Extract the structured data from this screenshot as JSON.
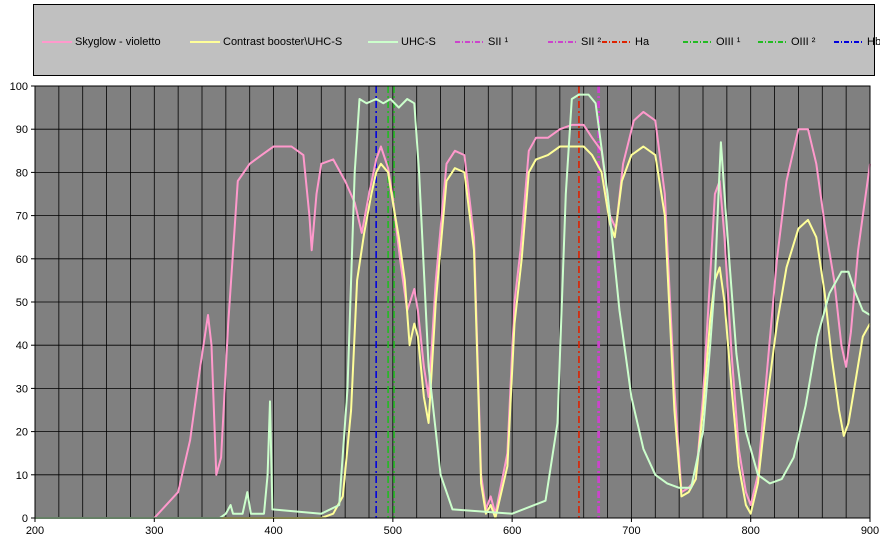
{
  "chart_data": {
    "type": "line",
    "title": "",
    "xlabel": "",
    "ylabel": "",
    "xlim": [
      200,
      900
    ],
    "ylim": [
      0,
      100
    ],
    "grid": true,
    "plot_background": "#808080",
    "legend_background": "#c0c0c0",
    "x_ticks": [
      "200",
      "300",
      "400",
      "500",
      "600",
      "700",
      "800",
      "900"
    ],
    "y_ticks": [
      "0",
      "10",
      "20",
      "30",
      "40",
      "50",
      "60",
      "70",
      "80",
      "90",
      "100"
    ],
    "legend_position": "top",
    "series": [
      {
        "name": "Skyglow - violetto",
        "color": "#ff99cc",
        "style": "solid",
        "points": [
          [
            200,
            0
          ],
          [
            300,
            0
          ],
          [
            320,
            6
          ],
          [
            330,
            18
          ],
          [
            338,
            34
          ],
          [
            345,
            47
          ],
          [
            348,
            40
          ],
          [
            352,
            10
          ],
          [
            356,
            14
          ],
          [
            362,
            45
          ],
          [
            370,
            78
          ],
          [
            380,
            82
          ],
          [
            390,
            84
          ],
          [
            400,
            86
          ],
          [
            415,
            86
          ],
          [
            425,
            84
          ],
          [
            430,
            70
          ],
          [
            432,
            62
          ],
          [
            436,
            75
          ],
          [
            440,
            82
          ],
          [
            450,
            83
          ],
          [
            460,
            78
          ],
          [
            468,
            73
          ],
          [
            474,
            66
          ],
          [
            480,
            75
          ],
          [
            486,
            83
          ],
          [
            490,
            86
          ],
          [
            496,
            81
          ],
          [
            500,
            74
          ],
          [
            506,
            60
          ],
          [
            512,
            48
          ],
          [
            518,
            53
          ],
          [
            521,
            48
          ],
          [
            526,
            35
          ],
          [
            530,
            28
          ],
          [
            536,
            55
          ],
          [
            545,
            82
          ],
          [
            552,
            85
          ],
          [
            560,
            84
          ],
          [
            568,
            65
          ],
          [
            574,
            10
          ],
          [
            578,
            2
          ],
          [
            582,
            5
          ],
          [
            586,
            1
          ],
          [
            596,
            15
          ],
          [
            602,
            50
          ],
          [
            607,
            62
          ],
          [
            614,
            85
          ],
          [
            620,
            88
          ],
          [
            630,
            88
          ],
          [
            640,
            90
          ],
          [
            650,
            91
          ],
          [
            660,
            91
          ],
          [
            667,
            88
          ],
          [
            675,
            85
          ],
          [
            682,
            70
          ],
          [
            687,
            67
          ],
          [
            693,
            82
          ],
          [
            702,
            92
          ],
          [
            710,
            94
          ],
          [
            720,
            92
          ],
          [
            728,
            75
          ],
          [
            736,
            30
          ],
          [
            742,
            6
          ],
          [
            748,
            7
          ],
          [
            754,
            9
          ],
          [
            760,
            28
          ],
          [
            766,
            56
          ],
          [
            770,
            75
          ],
          [
            774,
            78
          ],
          [
            778,
            65
          ],
          [
            784,
            38
          ],
          [
            790,
            16
          ],
          [
            796,
            6
          ],
          [
            800,
            3
          ],
          [
            806,
            10
          ],
          [
            814,
            35
          ],
          [
            822,
            60
          ],
          [
            830,
            78
          ],
          [
            840,
            90
          ],
          [
            848,
            90
          ],
          [
            855,
            82
          ],
          [
            862,
            68
          ],
          [
            870,
            55
          ],
          [
            876,
            40
          ],
          [
            880,
            35
          ],
          [
            884,
            43
          ],
          [
            890,
            62
          ],
          [
            895,
            72
          ],
          [
            900,
            82
          ]
        ]
      },
      {
        "name": "Contrast booster\\UHC-S",
        "color": "#ffff99",
        "style": "solid",
        "points": [
          [
            200,
            0
          ],
          [
            440,
            0
          ],
          [
            450,
            1
          ],
          [
            458,
            5
          ],
          [
            465,
            25
          ],
          [
            470,
            55
          ],
          [
            476,
            66
          ],
          [
            482,
            75
          ],
          [
            486,
            80
          ],
          [
            490,
            82
          ],
          [
            496,
            80
          ],
          [
            500,
            73
          ],
          [
            505,
            65
          ],
          [
            510,
            55
          ],
          [
            514,
            40
          ],
          [
            518,
            45
          ],
          [
            521,
            42
          ],
          [
            526,
            28
          ],
          [
            530,
            22
          ],
          [
            536,
            50
          ],
          [
            545,
            78
          ],
          [
            552,
            81
          ],
          [
            560,
            80
          ],
          [
            568,
            62
          ],
          [
            574,
            8
          ],
          [
            578,
            1
          ],
          [
            582,
            3
          ],
          [
            586,
            0
          ],
          [
            596,
            12
          ],
          [
            602,
            45
          ],
          [
            608,
            60
          ],
          [
            614,
            80
          ],
          [
            620,
            83
          ],
          [
            630,
            84
          ],
          [
            640,
            86
          ],
          [
            650,
            86
          ],
          [
            660,
            86
          ],
          [
            667,
            84
          ],
          [
            675,
            80
          ],
          [
            682,
            68
          ],
          [
            686,
            65
          ],
          [
            692,
            78
          ],
          [
            700,
            84
          ],
          [
            710,
            86
          ],
          [
            720,
            84
          ],
          [
            728,
            70
          ],
          [
            736,
            25
          ],
          [
            742,
            5
          ],
          [
            748,
            6
          ],
          [
            754,
            9
          ],
          [
            760,
            25
          ],
          [
            766,
            46
          ],
          [
            770,
            55
          ],
          [
            774,
            58
          ],
          [
            778,
            50
          ],
          [
            784,
            30
          ],
          [
            790,
            12
          ],
          [
            796,
            3
          ],
          [
            800,
            1
          ],
          [
            806,
            8
          ],
          [
            814,
            28
          ],
          [
            822,
            45
          ],
          [
            830,
            58
          ],
          [
            840,
            67
          ],
          [
            848,
            69
          ],
          [
            855,
            65
          ],
          [
            862,
            52
          ],
          [
            868,
            37
          ],
          [
            874,
            25
          ],
          [
            878,
            19
          ],
          [
            882,
            22
          ],
          [
            888,
            32
          ],
          [
            894,
            42
          ],
          [
            900,
            45
          ]
        ]
      },
      {
        "name": "UHC-S",
        "color": "#ccffcc",
        "style": "solid",
        "points": [
          [
            200,
            0
          ],
          [
            355,
            0
          ],
          [
            360,
            1
          ],
          [
            364,
            3
          ],
          [
            366,
            1
          ],
          [
            374,
            1
          ],
          [
            378,
            6
          ],
          [
            381,
            1
          ],
          [
            392,
            1
          ],
          [
            395,
            10
          ],
          [
            397,
            27
          ],
          [
            399,
            2
          ],
          [
            440,
            1
          ],
          [
            455,
            3
          ],
          [
            462,
            30
          ],
          [
            468,
            80
          ],
          [
            472,
            97
          ],
          [
            478,
            96
          ],
          [
            486,
            97
          ],
          [
            492,
            96
          ],
          [
            498,
            97
          ],
          [
            505,
            95
          ],
          [
            512,
            97
          ],
          [
            518,
            96
          ],
          [
            522,
            80
          ],
          [
            530,
            35
          ],
          [
            540,
            10
          ],
          [
            550,
            2
          ],
          [
            600,
            1
          ],
          [
            628,
            4
          ],
          [
            638,
            22
          ],
          [
            645,
            75
          ],
          [
            650,
            97
          ],
          [
            656,
            98
          ],
          [
            664,
            98
          ],
          [
            670,
            96
          ],
          [
            680,
            75
          ],
          [
            690,
            48
          ],
          [
            700,
            28
          ],
          [
            710,
            16
          ],
          [
            720,
            10
          ],
          [
            730,
            8
          ],
          [
            740,
            7
          ],
          [
            750,
            7
          ],
          [
            760,
            20
          ],
          [
            766,
            40
          ],
          [
            770,
            55
          ],
          [
            773,
            75
          ],
          [
            775,
            87
          ],
          [
            778,
            75
          ],
          [
            782,
            60
          ],
          [
            788,
            38
          ],
          [
            796,
            20
          ],
          [
            806,
            10
          ],
          [
            816,
            8
          ],
          [
            826,
            9
          ],
          [
            836,
            14
          ],
          [
            846,
            26
          ],
          [
            856,
            42
          ],
          [
            866,
            52
          ],
          [
            876,
            57
          ],
          [
            882,
            57
          ],
          [
            888,
            52
          ],
          [
            894,
            48
          ],
          [
            900,
            47
          ]
        ]
      }
    ],
    "vertical_lines": [
      {
        "name": "SII ¹",
        "x": 672,
        "color": "#cc44cc",
        "style": "dashdot"
      },
      {
        "name": "SII ²",
        "x": 673,
        "color": "#cc44cc",
        "style": "dashdot"
      },
      {
        "name": "Ha",
        "x": 656,
        "color": "#dd2200",
        "style": "dashdot"
      },
      {
        "name": "OIII ¹",
        "x": 496,
        "color": "#22bb22",
        "style": "dashdot"
      },
      {
        "name": "OIII ²",
        "x": 501,
        "color": "#22bb22",
        "style": "dashdot"
      },
      {
        "name": "Hb",
        "x": 486,
        "color": "#0000dd",
        "style": "dashdot"
      }
    ]
  }
}
